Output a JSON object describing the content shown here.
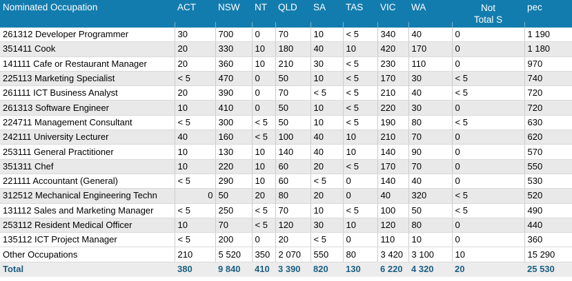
{
  "colors": {
    "header_bg": "#137CAE",
    "header_text": "#FFFFFF",
    "row_stripe": "#E9E9E9",
    "total_bg": "#ECECEC",
    "total_text": "#1A5E82"
  },
  "table": {
    "header": {
      "occupation": "Nominated Occupation",
      "cols": [
        {
          "label": "ACT"
        },
        {
          "label": "NSW"
        },
        {
          "label": "NT"
        },
        {
          "label": "QLD"
        },
        {
          "label": "SA"
        },
        {
          "label": "TAS"
        },
        {
          "label": "VIC"
        },
        {
          "label": "WA"
        },
        {
          "label": "Not",
          "label2": "Total S"
        },
        {
          "label": "pec"
        }
      ]
    },
    "rows": [
      {
        "occupation": "261312 Developer Programmer",
        "values": [
          "30",
          "700",
          "0",
          "70",
          "10",
          "< 5",
          "340",
          "40",
          "0",
          "1 190"
        ]
      },
      {
        "occupation": "351411 Cook",
        "values": [
          "20",
          "330",
          "10",
          "180",
          "40",
          "10",
          "420",
          "170",
          "0",
          "1 180"
        ]
      },
      {
        "occupation": "141111 Cafe or Restaurant Manager",
        "values": [
          "20",
          "360",
          "10",
          "210",
          "30",
          "< 5",
          "230",
          "110",
          "0",
          "970"
        ]
      },
      {
        "occupation": "225113 Marketing Specialist",
        "values": [
          "< 5",
          "470",
          "0",
          "50",
          "10",
          "< 5",
          "170",
          "30",
          "< 5",
          "740"
        ]
      },
      {
        "occupation": "261111 ICT Business Analyst",
        "values": [
          "20",
          "390",
          "0",
          "70",
          "< 5",
          "< 5",
          "210",
          "40",
          "< 5",
          "720"
        ]
      },
      {
        "occupation": "261313 Software Engineer",
        "values": [
          "10",
          "410",
          "0",
          "50",
          "10",
          "< 5",
          "220",
          "30",
          "0",
          "720"
        ]
      },
      {
        "occupation": "224711 Management Consultant",
        "values": [
          "< 5",
          "300",
          "< 5",
          "50",
          "10",
          "< 5",
          "190",
          "80",
          "< 5",
          "630"
        ]
      },
      {
        "occupation": "242111 University Lecturer",
        "values": [
          "40",
          "160",
          "< 5",
          "100",
          "40",
          "10",
          "210",
          "70",
          "0",
          "620"
        ]
      },
      {
        "occupation": "253111 General Practitioner",
        "values": [
          "10",
          "130",
          "10",
          "140",
          "40",
          "10",
          "140",
          "90",
          "0",
          "570"
        ]
      },
      {
        "occupation": "351311 Chef",
        "values": [
          "10",
          "220",
          "10",
          "60",
          "20",
          "< 5",
          "170",
          "70",
          "0",
          "550"
        ]
      },
      {
        "occupation": "221111 Accountant (General)",
        "values": [
          "< 5",
          "290",
          "10",
          "60",
          "< 5",
          "0",
          "140",
          "40",
          "0",
          "530"
        ]
      },
      {
        "occupation": "312512 Mechanical Engineering Techn",
        "values": [
          "0",
          "50",
          "20",
          "80",
          "20",
          "0",
          "40",
          "320",
          "< 5",
          "520"
        ],
        "act_right": true
      },
      {
        "occupation": "131112 Sales and Marketing Manager",
        "values": [
          "< 5",
          "250",
          "< 5",
          "70",
          "10",
          "< 5",
          "100",
          "50",
          "< 5",
          "490"
        ]
      },
      {
        "occupation": "253112 Resident Medical Officer",
        "values": [
          "10",
          "70",
          "< 5",
          "120",
          "30",
          "10",
          "120",
          "80",
          "0",
          "440"
        ]
      },
      {
        "occupation": "135112 ICT Project Manager",
        "values": [
          "< 5",
          "200",
          "0",
          "20",
          "< 5",
          "0",
          "110",
          "10",
          "0",
          "360"
        ]
      },
      {
        "occupation": "Other Occupations",
        "values": [
          "210",
          "5 520",
          "350",
          "2 070",
          "550",
          "80",
          "3 420",
          "3 100",
          "10",
          "15 290"
        ]
      }
    ],
    "total": {
      "occupation": "Total",
      "values": [
        "380",
        "9 840",
        "410",
        "3 390",
        "820",
        "130",
        "6 220",
        "4 320",
        "20",
        "25 530"
      ]
    }
  }
}
